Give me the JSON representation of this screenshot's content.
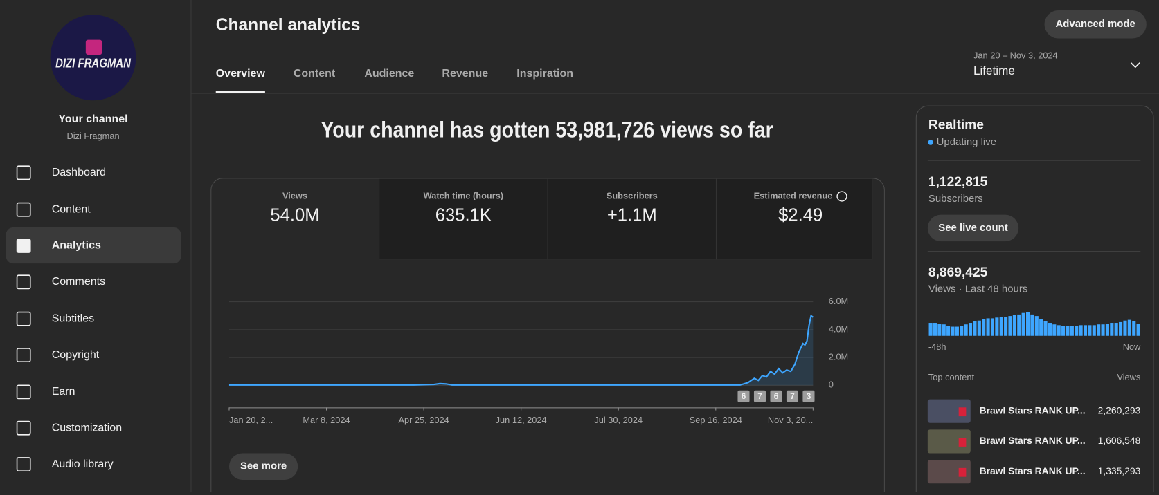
{
  "sidebar": {
    "logo_text": "DIZI FRAGMAN",
    "title": "Your channel",
    "channel_name": "Dizi Fragman",
    "nav": [
      "Dashboard",
      "Content",
      "Analytics",
      "Comments",
      "Subtitles",
      "Copyright",
      "Earn",
      "Customization",
      "Audio library"
    ],
    "active_index": 2
  },
  "header": {
    "title": "Channel analytics",
    "button": "Advanced mode",
    "tabs": [
      "Overview",
      "Content",
      "Audience",
      "Revenue",
      "Inspiration"
    ],
    "active_tab": 0,
    "date_range": "Jan 20 – Nov 3, 2024",
    "period": "Lifetime"
  },
  "headline": "Your channel has gotten 53,981,726 views so far",
  "metrics": [
    {
      "label": "Views",
      "value": "54.0M"
    },
    {
      "label": "Watch time (hours)",
      "value": "635.1K"
    },
    {
      "label": "Subscribers",
      "value": "+1.1M"
    },
    {
      "label": "Estimated revenue",
      "value": "$2.49"
    }
  ],
  "see_more": "See more",
  "realtime": {
    "title": "Realtime",
    "status": "Updating live",
    "subscribers": "1,122,815",
    "subscribers_label": "Subscribers",
    "button": "See live count",
    "views": "8,869,425",
    "views_label": "Views · Last 48 hours",
    "top_content_label": "Top content",
    "views_column": "Views",
    "top_content": [
      {
        "title": "Brawl Stars RANK UP...",
        "views": "2,260,293"
      },
      {
        "title": "Brawl Stars RANK UP...",
        "views": "1,606,548"
      },
      {
        "title": "Brawl Stars RANK UP...",
        "views": "1,335,293"
      }
    ]
  },
  "chart_data": [
    {
      "type": "line",
      "x": [
        "2024-01-20",
        "2024-02-15",
        "2024-03-15",
        "2024-04-20",
        "2024-04-30",
        "2024-05-03",
        "2024-05-06",
        "2024-05-09",
        "2024-06-15",
        "2024-08-01",
        "2024-09-15",
        "2024-09-28",
        "2024-10-02",
        "2024-10-05",
        "2024-10-07",
        "2024-10-09",
        "2024-10-11",
        "2024-10-13",
        "2024-10-15",
        "2024-10-17",
        "2024-10-19",
        "2024-10-21",
        "2024-10-23",
        "2024-10-25",
        "2024-10-27",
        "2024-10-29",
        "2024-10-30",
        "2024-10-31",
        "2024-11-01",
        "2024-11-02",
        "2024-11-03"
      ],
      "values": [
        20000,
        20000,
        20000,
        20000,
        60000,
        120000,
        100000,
        20000,
        20000,
        20000,
        20000,
        20000,
        200000,
        500000,
        350000,
        700000,
        600000,
        1000000,
        800000,
        1200000,
        900000,
        1100000,
        1000000,
        1500000,
        2400000,
        3000000,
        2900000,
        3200000,
        4300000,
        5000000,
        4900000
      ],
      "color": "#3ea6ff",
      "xlim": [
        "2024-01-20",
        "2024-11-03"
      ],
      "xticks": [
        {
          "value": "2024-01-20",
          "label": "Jan 20, 2..."
        },
        {
          "value": "2024-03-08",
          "label": "Mar 8, 2024"
        },
        {
          "value": "2024-04-25",
          "label": "Apr 25, 2024"
        },
        {
          "value": "2024-06-12",
          "label": "Jun 12, 2024"
        },
        {
          "value": "2024-07-30",
          "label": "Jul 30, 2024"
        },
        {
          "value": "2024-09-16",
          "label": "Sep 16, 2024"
        },
        {
          "value": "2024-11-03",
          "label": "Nov 3, 20..."
        }
      ],
      "ylim": [
        0,
        6000000
      ],
      "yticks": [
        0,
        {
          "value": 2000000,
          "label": "2.0M"
        },
        {
          "value": 4000000,
          "label": "4.0M"
        },
        {
          "value": 6000000,
          "label": "6.0M"
        }
      ],
      "grid": true,
      "markers": [
        6,
        7,
        6,
        7,
        3
      ]
    },
    {
      "type": "bar",
      "categories": [
        "-48h",
        null,
        null,
        null,
        null,
        null,
        null,
        null,
        null,
        null,
        null,
        null,
        null,
        null,
        null,
        null,
        null,
        null,
        null,
        null,
        null,
        null,
        null,
        null,
        null,
        null,
        null,
        null,
        null,
        null,
        null,
        null,
        null,
        null,
        null,
        null,
        null,
        null,
        null,
        null,
        null,
        null,
        null,
        null,
        null,
        null,
        null,
        "Now"
      ],
      "values": [
        170000,
        170000,
        160000,
        150000,
        130000,
        120000,
        120000,
        130000,
        150000,
        170000,
        190000,
        200000,
        220000,
        230000,
        230000,
        240000,
        250000,
        250000,
        260000,
        270000,
        280000,
        300000,
        310000,
        280000,
        260000,
        220000,
        190000,
        170000,
        150000,
        140000,
        130000,
        130000,
        130000,
        130000,
        140000,
        140000,
        140000,
        140000,
        150000,
        150000,
        160000,
        170000,
        170000,
        180000,
        200000,
        210000,
        190000,
        160000
      ],
      "color": "#3ea6ff"
    }
  ]
}
